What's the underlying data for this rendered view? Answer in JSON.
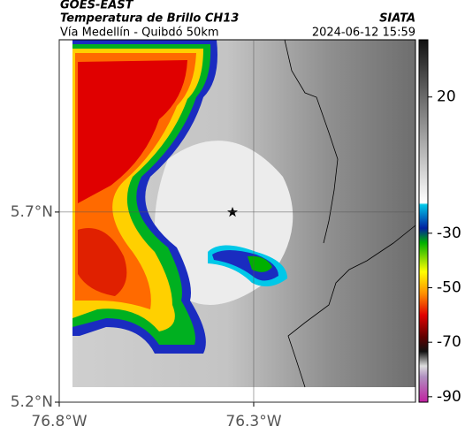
{
  "header": {
    "source": "GOES-EAST",
    "title": "Temperatura de Brillo CH13",
    "agency": "SIATA",
    "subtitle": "Vía Medellín - Quibdó 50km",
    "timestamp": "2024-06-12 15:59"
  },
  "map": {
    "xlim": [
      -76.8,
      -75.884
    ],
    "ylim": [
      5.2,
      6.153
    ],
    "xticks": [
      {
        "value": -76.8,
        "label": "76.8°W"
      },
      {
        "value": -76.3,
        "label": "76.3°W"
      }
    ],
    "yticks": [
      {
        "value": 5.2,
        "label": "5.2°N"
      },
      {
        "value": 5.7,
        "label": "5.7°N"
      }
    ]
  },
  "colorbar": {
    "lim": [
      -92,
      41
    ],
    "ticks": [
      20,
      -30,
      -50,
      -70,
      -90
    ]
  }
}
